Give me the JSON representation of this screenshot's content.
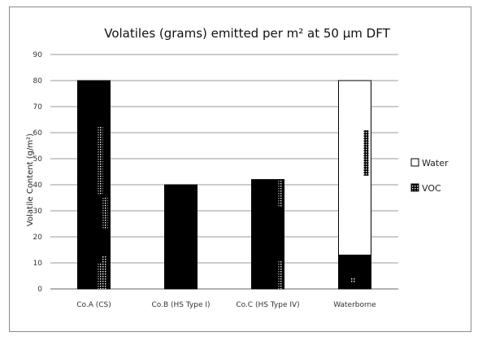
{
  "chart_data": {
    "type": "bar",
    "stacked": true,
    "title": "Volatiles (grams) emitted per m² at 50 µm DFT",
    "ylabel": "Volatile Content (g/m²)",
    "xlabel": "",
    "ylim": [
      0,
      90
    ],
    "yticks": [
      0,
      10,
      20,
      30,
      40,
      50,
      60,
      70,
      80,
      90
    ],
    "grid": true,
    "legend_position": "right",
    "categories": [
      "Co.A (CS)",
      "Co.B (HS Type I)",
      "Co.C (HS Type IV)",
      "Waterborne"
    ],
    "series": [
      {
        "name": "VOC",
        "values": [
          80,
          40,
          42,
          13
        ],
        "color": "#000000"
      },
      {
        "name": "Water",
        "values": [
          0,
          0,
          0,
          67
        ],
        "color": "#ffffff"
      }
    ]
  }
}
